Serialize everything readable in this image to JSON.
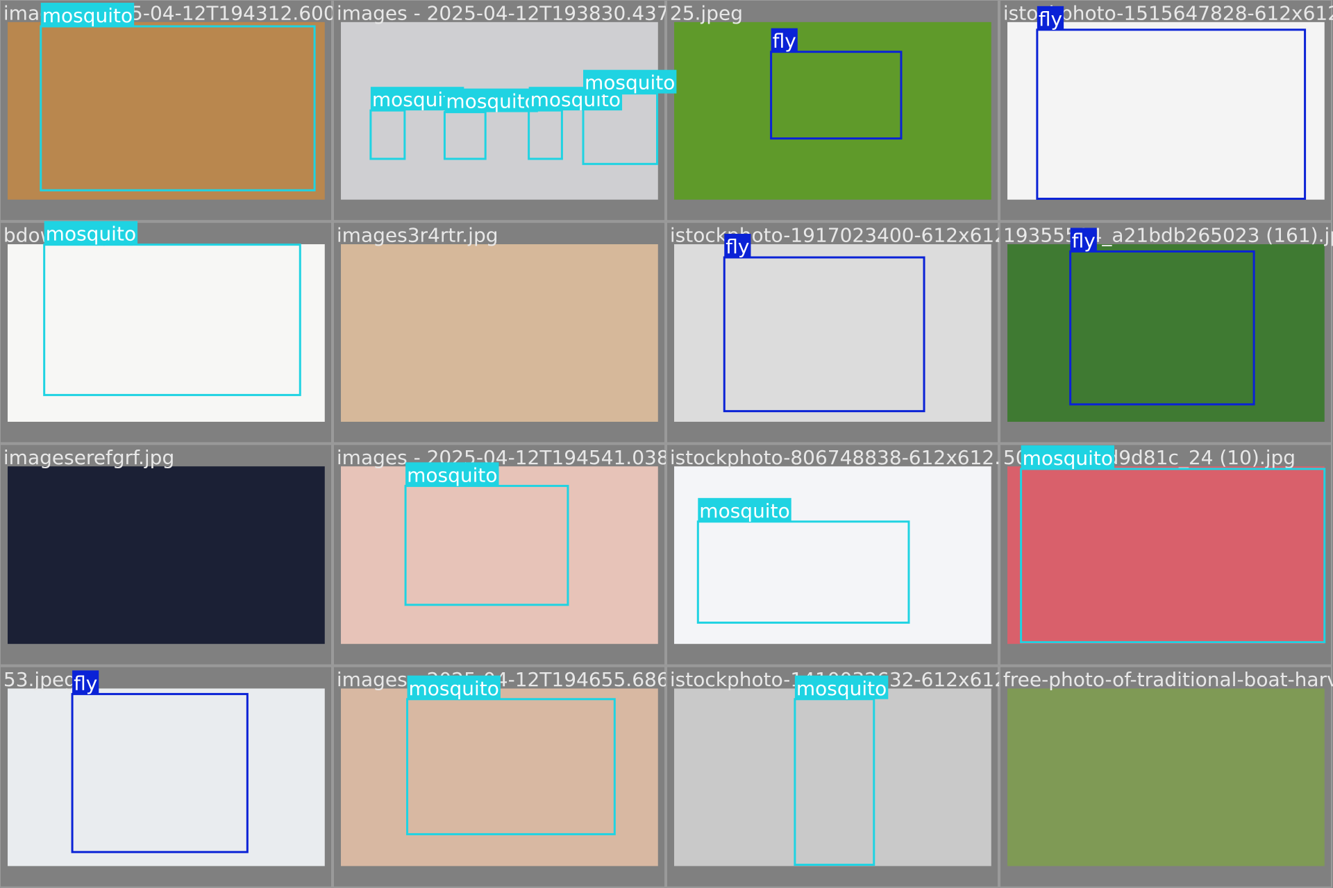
{
  "classes": [
    {
      "name": "mosquito",
      "color": "#1fd3e2"
    },
    {
      "name": "fly",
      "color": "#0a22d6"
    }
  ],
  "tiles": [
    {
      "filename": "images - 2025-04-12T194312.600.jpeg",
      "detections": [
        {
          "class": 0
        }
      ]
    },
    {
      "filename": "images - 2025-04-12T193830.437.jpeg",
      "detections": [
        {
          "class": 0
        },
        {
          "class": 0
        },
        {
          "class": 0
        },
        {
          "class": 0
        }
      ]
    },
    {
      "filename": "25.jpeg",
      "detections": [
        {
          "class": 1
        }
      ]
    },
    {
      "filename": "istockphoto-1515647828-612x612.jpg",
      "detections": [
        {
          "class": 1
        }
      ]
    },
    {
      "filename": "bdow (1).jpeg",
      "detections": [
        {
          "class": 0
        }
      ]
    },
    {
      "filename": "images3r4rtr.jpg",
      "detections": []
    },
    {
      "filename": "istockphoto-1917023400-612x612.jpg",
      "detections": [
        {
          "class": 1
        }
      ]
    },
    {
      "filename": "19355504_a21bdb265023 (161).jpg",
      "detections": [
        {
          "class": 1
        }
      ]
    },
    {
      "filename": "imageserefgrf.jpg",
      "detections": []
    },
    {
      "filename": "images - 2025-04-12T194541.038.jpeg",
      "detections": [
        {
          "class": 0
        }
      ]
    },
    {
      "filename": "istockphoto-806748838-612x612.jpg",
      "detections": [
        {
          "class": 0
        }
      ]
    },
    {
      "filename": "5038_30f8d9d81c_24 (10).jpg",
      "detections": [
        {
          "class": 0
        }
      ]
    },
    {
      "filename": "53.jpeg",
      "detections": [
        {
          "class": 1
        }
      ]
    },
    {
      "filename": "images - 2025-04-12T194655.686.jpeg",
      "detections": [
        {
          "class": 0
        }
      ]
    },
    {
      "filename": "istockphoto-1410032632-612x612.jpg",
      "detections": [
        {
          "class": 0
        }
      ]
    },
    {
      "filename": "free-photo-of-traditional-boat-harvest.jpeg",
      "detections": []
    }
  ]
}
